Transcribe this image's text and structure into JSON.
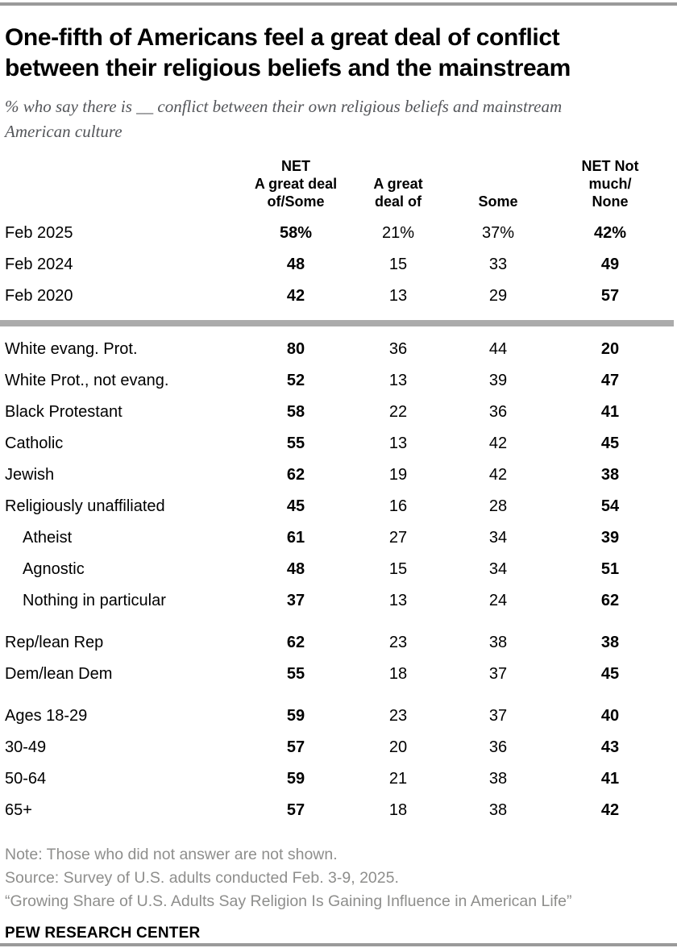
{
  "header": {
    "title": "One-fifth of Americans feel a great deal of conflict between their religious beliefs and the mainstream",
    "subtitle": "% who say there is __ conflict between their own religious beliefs and mainstream American culture"
  },
  "chart_data": {
    "type": "table",
    "title": "One-fifth of Americans feel a great deal of conflict between their religious beliefs and the mainstream",
    "subtitle": "% who say there is __ conflict between their own religious beliefs and mainstream American culture",
    "unit": "percent",
    "columns": [
      "NET\nA great deal\nof/Some",
      "A great\ndeal of",
      "Some",
      "NET Not\nmuch/\nNone"
    ],
    "groups": [
      {
        "name": "trend",
        "rows": [
          {
            "label": "Feb 2025",
            "indent": false,
            "values": [
              "58%",
              "21%",
              "37%",
              "42%"
            ]
          },
          {
            "label": "Feb 2024",
            "indent": false,
            "values": [
              "48",
              "15",
              "33",
              "49"
            ]
          },
          {
            "label": "Feb 2020",
            "indent": false,
            "values": [
              "42",
              "13",
              "29",
              "57"
            ]
          }
        ]
      },
      {
        "name": "religious-group",
        "rows": [
          {
            "label": "White evang. Prot.",
            "indent": false,
            "values": [
              "80",
              "36",
              "44",
              "20"
            ]
          },
          {
            "label": "White Prot., not evang.",
            "indent": false,
            "values": [
              "52",
              "13",
              "39",
              "47"
            ]
          },
          {
            "label": "Black Protestant",
            "indent": false,
            "values": [
              "58",
              "22",
              "36",
              "41"
            ]
          },
          {
            "label": "Catholic",
            "indent": false,
            "values": [
              "55",
              "13",
              "42",
              "45"
            ]
          },
          {
            "label": "Jewish",
            "indent": false,
            "values": [
              "62",
              "19",
              "42",
              "38"
            ]
          },
          {
            "label": "Religiously unaffiliated",
            "indent": false,
            "values": [
              "45",
              "16",
              "28",
              "54"
            ]
          },
          {
            "label": "Atheist",
            "indent": true,
            "values": [
              "61",
              "27",
              "34",
              "39"
            ]
          },
          {
            "label": "Agnostic",
            "indent": true,
            "values": [
              "48",
              "15",
              "34",
              "51"
            ]
          },
          {
            "label": "Nothing in particular",
            "indent": true,
            "values": [
              "37",
              "13",
              "24",
              "62"
            ]
          }
        ]
      },
      {
        "name": "party",
        "rows": [
          {
            "label": "Rep/lean Rep",
            "indent": false,
            "values": [
              "62",
              "23",
              "38",
              "38"
            ]
          },
          {
            "label": "Dem/lean Dem",
            "indent": false,
            "values": [
              "55",
              "18",
              "37",
              "45"
            ]
          }
        ]
      },
      {
        "name": "age",
        "rows": [
          {
            "label": "Ages 18-29",
            "indent": false,
            "values": [
              "59",
              "23",
              "37",
              "40"
            ]
          },
          {
            "label": "30-49",
            "indent": false,
            "values": [
              "57",
              "20",
              "36",
              "43"
            ]
          },
          {
            "label": "50-64",
            "indent": false,
            "values": [
              "59",
              "21",
              "38",
              "41"
            ]
          },
          {
            "label": "65+",
            "indent": false,
            "values": [
              "57",
              "18",
              "38",
              "42"
            ]
          }
        ]
      }
    ]
  },
  "footer": {
    "note": "Note: Those who did not answer are not shown.",
    "source": "Source: Survey of U.S. adults conducted Feb. 3-9, 2025.",
    "report": "“Growing Share of U.S. Adults Say Religion Is Gaining Influence in American Life”",
    "brand": "PEW RESEARCH CENTER"
  }
}
